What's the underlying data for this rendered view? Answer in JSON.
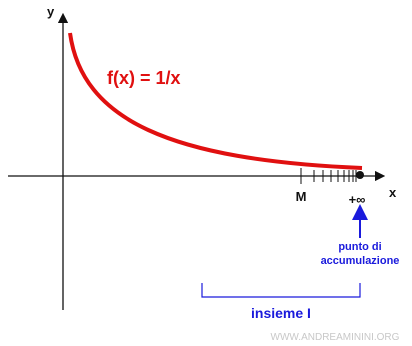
{
  "axes": {
    "y_label": "y",
    "x_label": "x"
  },
  "function_label": "f(x) = 1/x",
  "point_label": "M",
  "infinity_label": "+∞",
  "annotation": {
    "line1": "punto di",
    "line2": "accumulazione"
  },
  "set_label": "insieme I",
  "watermark": "WWW.ANDREAMININI.ORG"
}
